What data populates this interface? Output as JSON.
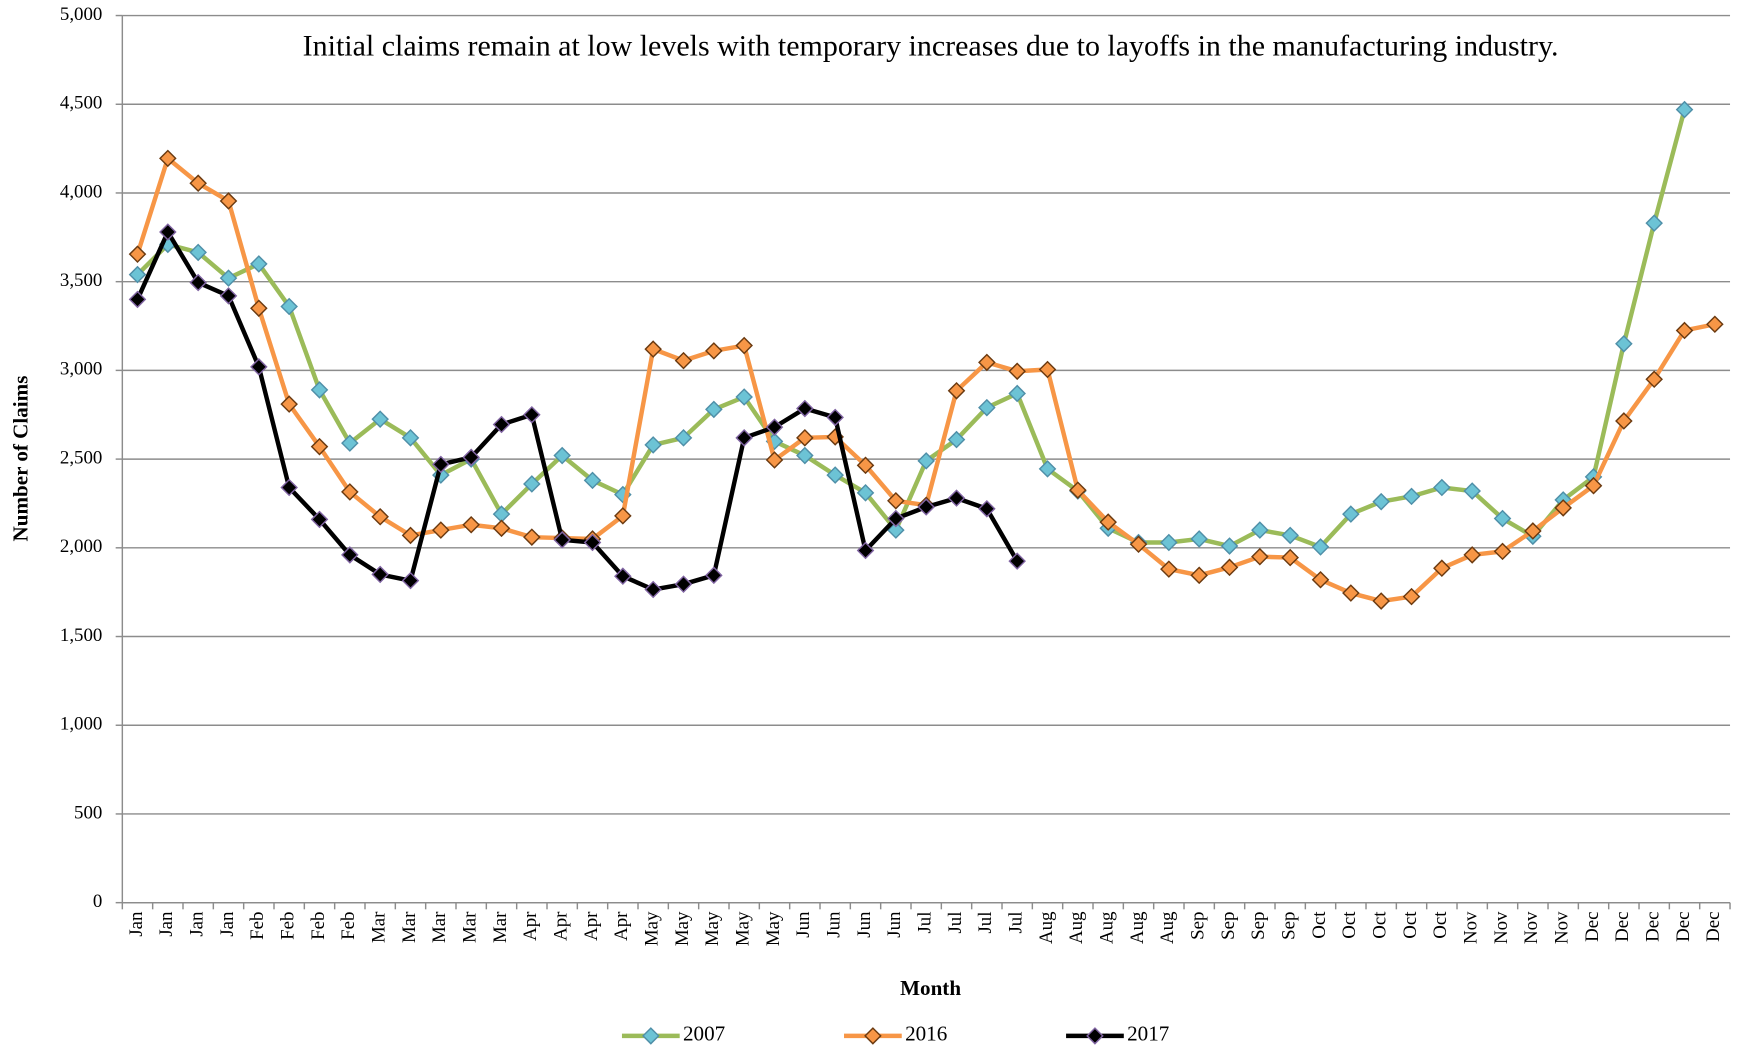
{
  "chart_data": {
    "type": "line",
    "title": "Initial claims remain at low levels with temporary increases due to layoffs in the manufacturing industry.",
    "x_label": "Month",
    "y_label": "Number of Claims",
    "categories": [
      "Jan",
      "Jan",
      "Jan",
      "Jan",
      "Feb",
      "Feb",
      "Feb",
      "Feb",
      "Mar",
      "Mar",
      "Mar",
      "Mar",
      "Mar",
      "Apr",
      "Apr",
      "Apr",
      "Apr",
      "May",
      "May",
      "May",
      "May",
      "May",
      "Jun",
      "Jun",
      "Jun",
      "Jun",
      "Jul",
      "Jul",
      "Jul",
      "Jul",
      "Aug",
      "Aug",
      "Aug",
      "Aug",
      "Aug",
      "Sep",
      "Sep",
      "Sep",
      "Sep",
      "Oct",
      "Oct",
      "Oct",
      "Oct",
      "Oct",
      "Nov",
      "Nov",
      "Nov",
      "Nov",
      "Dec",
      "Dec",
      "Dec",
      "Dec",
      "Dec"
    ],
    "ylim": [
      0,
      5000
    ],
    "yticks": [
      0,
      500,
      {
        "value": 1000,
        "label": "1,000"
      },
      {
        "value": 1500,
        "label": "1,500"
      },
      {
        "value": 2000,
        "label": "2,000"
      },
      {
        "value": 2500,
        "label": "2,500"
      },
      {
        "value": 3000,
        "label": "3,000"
      },
      {
        "value": 3500,
        "label": "3,500"
      },
      {
        "value": 4000,
        "label": "4,000"
      },
      {
        "value": 4500,
        "label": "4,500"
      },
      {
        "value": 5000,
        "label": "5,000"
      }
    ],
    "grid": true,
    "legend": "bottom",
    "series": [
      {
        "name": "2007",
        "color": "#9bbb59",
        "marker_color": "#6cc3d5",
        "marker_stroke": "#4f8fa8",
        "values": [
          3540,
          3710,
          3665,
          3520,
          3600,
          3360,
          2890,
          2590,
          2725,
          2620,
          2410,
          2500,
          2190,
          2360,
          2520,
          2380,
          2300,
          2580,
          2620,
          2780,
          2850,
          2600,
          2520,
          2410,
          2310,
          2100,
          2490,
          2610,
          2790,
          2870,
          2445,
          2320,
          2110,
          2030,
          2030,
          2050,
          2010,
          2100,
          2070,
          2005,
          2190,
          2260,
          2290,
          2340,
          2320,
          2165,
          2065,
          2270,
          2400,
          3150,
          3830,
          4470,
          null
        ]
      },
      {
        "name": "2016",
        "color": "#f79646",
        "marker_color": "#f79646",
        "marker_stroke": "#6b3a10",
        "values": [
          3655,
          4195,
          4055,
          3955,
          3350,
          2810,
          2570,
          2315,
          2175,
          2070,
          2100,
          2130,
          2110,
          2060,
          2055,
          2050,
          2180,
          3120,
          3055,
          3110,
          3140,
          2495,
          2620,
          2625,
          2465,
          2265,
          2240,
          2885,
          3045,
          2995,
          3005,
          2325,
          2145,
          2020,
          1880,
          1845,
          1890,
          1950,
          1945,
          1820,
          1745,
          1700,
          1725,
          1885,
          1960,
          1980,
          2095,
          2225,
          2350,
          2715,
          2950,
          3225,
          3260
        ]
      },
      {
        "name": "2017",
        "color": "#000000",
        "marker_color": "#000000",
        "marker_stroke": "#8064a2",
        "values": [
          3400,
          3780,
          3495,
          3420,
          3020,
          2340,
          2160,
          1960,
          1850,
          1815,
          2470,
          2510,
          2695,
          2750,
          2045,
          2030,
          1840,
          1765,
          1795,
          1845,
          2620,
          2680,
          2785,
          2735,
          1985,
          2165,
          2230,
          2280,
          2220,
          1925,
          null,
          null,
          null,
          null,
          null,
          null,
          null,
          null,
          null,
          null,
          null,
          null,
          null,
          null,
          null,
          null,
          null,
          null,
          null,
          null,
          null,
          null,
          null
        ]
      }
    ]
  }
}
